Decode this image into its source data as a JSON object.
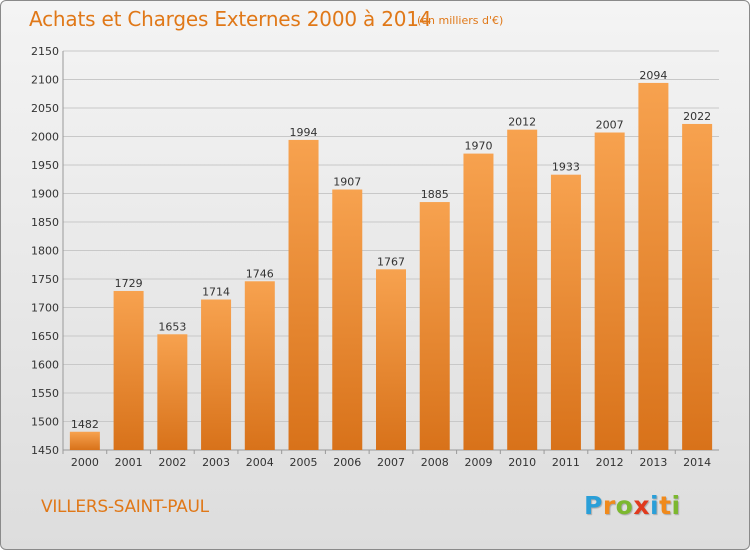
{
  "title": "Achats et Charges Externes 2000 à 2014",
  "unit_label": "(en milliers d'€)",
  "commune": "VILLERS-SAINT-PAUL",
  "logo": {
    "letters": [
      "P",
      "r",
      "o",
      "x",
      "i",
      "t",
      "i"
    ],
    "colors": [
      "#2a9fd8",
      "#f08a1c",
      "#7cb82f",
      "#e03a1e",
      "#2a9fd8",
      "#f08a1c",
      "#7cb82f"
    ]
  },
  "colors": {
    "bar_top": "#f7a24f",
    "bar_bottom": "#d8721a",
    "accent": "#e07818",
    "grid": "#c8c8c8"
  },
  "chart_data": {
    "type": "bar",
    "categories": [
      "2000",
      "2001",
      "2002",
      "2003",
      "2004",
      "2005",
      "2006",
      "2007",
      "2008",
      "2009",
      "2010",
      "2011",
      "2012",
      "2013",
      "2014"
    ],
    "values": [
      1482,
      1729,
      1653,
      1714,
      1746,
      1994,
      1907,
      1767,
      1885,
      1970,
      2012,
      1933,
      2007,
      2094,
      2022
    ],
    "title": "Achats et Charges Externes 2000 à 2014",
    "xlabel": "",
    "ylabel": "",
    "ylim": [
      1450,
      2150
    ],
    "yticks": [
      1450,
      1500,
      1550,
      1600,
      1650,
      1700,
      1750,
      1800,
      1850,
      1900,
      1950,
      2000,
      2050,
      2100,
      2150
    ],
    "grid": true,
    "legend": "none"
  }
}
